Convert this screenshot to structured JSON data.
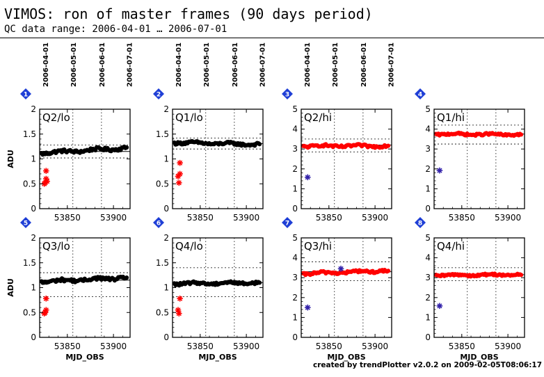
{
  "page": {
    "title": "VIMOS: ron of master frames (90 days period)",
    "subtitle": "QC data range: 2006-04-01 … 2006-07-01",
    "footer": "created by trendPlotter v2.0.2 on 2009-02-05T08:06:17"
  },
  "colors": {
    "black_points": "#000000",
    "red_points": "#ff0000",
    "outlier_star": "#3322aa",
    "badge": "#1f3fd6"
  },
  "chart_data": [
    {
      "type": "scatter",
      "panel": 1,
      "label": "Q2/lo",
      "ylabel": "ADU",
      "xlabel": "",
      "xlim": [
        53820,
        53918
      ],
      "ylim": [
        0,
        2
      ],
      "yticks": [
        0,
        0.5,
        1,
        1.5,
        2
      ],
      "yticklabels": [
        "0",
        "0.5",
        "1",
        "1.5",
        "2"
      ],
      "xticks": [
        53850,
        53900
      ],
      "xticklabels": [
        "53850",
        "53900"
      ],
      "date_ticks": [
        {
          "x": 53826,
          "label": "2006-04-01"
        },
        {
          "x": 53856,
          "label": "2006-05-01"
        },
        {
          "x": 53887,
          "label": "2006-06-01"
        },
        {
          "x": 53917,
          "label": "2006-07-01"
        }
      ],
      "ref_line": 1.15,
      "band": [
        1.02,
        1.28
      ],
      "main": {
        "color": "black",
        "start": 53822,
        "end": 53915,
        "base": 1.12,
        "end_level": 1.22,
        "scatter": 0.03
      },
      "stars": [
        {
          "x": 53826,
          "y": 0.52,
          "color": "red"
        },
        {
          "x": 53827,
          "y": 0.6,
          "color": "red"
        },
        {
          "x": 53825,
          "y": 0.5,
          "color": "red"
        },
        {
          "x": 53828,
          "y": 0.55,
          "color": "red"
        },
        {
          "x": 53827,
          "y": 0.76,
          "color": "red"
        }
      ]
    },
    {
      "type": "scatter",
      "panel": 2,
      "label": "Q1/lo",
      "ylabel": "",
      "xlabel": "",
      "xlim": [
        53820,
        53918
      ],
      "ylim": [
        0,
        2
      ],
      "yticks": [
        0,
        0.5,
        1,
        1.5,
        2
      ],
      "yticklabels": [
        "0",
        "0.5",
        "1",
        "1.5",
        "2"
      ],
      "xticks": [
        53850,
        53900
      ],
      "xticklabels": [
        "53850",
        "53900"
      ],
      "date_ticks": [
        {
          "x": 53826,
          "label": "2006-04-01"
        },
        {
          "x": 53856,
          "label": "2006-05-01"
        },
        {
          "x": 53887,
          "label": "2006-06-01"
        },
        {
          "x": 53917,
          "label": "2006-07-01"
        }
      ],
      "ref_line": 1.31,
      "band": [
        1.2,
        1.42
      ],
      "main": {
        "color": "black",
        "start": 53822,
        "end": 53915,
        "base": 1.33,
        "end_level": 1.29,
        "scatter": 0.025
      },
      "stars": [
        {
          "x": 53827,
          "y": 0.52,
          "color": "red"
        },
        {
          "x": 53826,
          "y": 0.65,
          "color": "red"
        },
        {
          "x": 53828,
          "y": 0.7,
          "color": "red"
        },
        {
          "x": 53828,
          "y": 0.92,
          "color": "red"
        }
      ]
    },
    {
      "type": "scatter",
      "panel": 3,
      "label": "Q2/hi",
      "ylabel": "",
      "xlabel": "",
      "xlim": [
        53820,
        53918
      ],
      "ylim": [
        0,
        5
      ],
      "yticks": [
        0,
        1,
        2,
        3,
        4,
        5
      ],
      "yticklabels": [
        "0",
        "1",
        "2",
        "3",
        "4",
        "5"
      ],
      "xticks": [
        53850,
        53900
      ],
      "xticklabels": [
        "53850",
        "53900"
      ],
      "date_ticks": [
        {
          "x": 53826,
          "label": "2006-04-01"
        },
        {
          "x": 53856,
          "label": "2006-05-01"
        },
        {
          "x": 53887,
          "label": "2006-06-01"
        },
        {
          "x": 53917,
          "label": "2006-07-01"
        }
      ],
      "ref_line": 3.2,
      "band": [
        2.85,
        3.5
      ],
      "main": {
        "color": "red",
        "start": 53822,
        "end": 53915,
        "base": 3.15,
        "end_level": 3.15,
        "scatter": 0.06
      },
      "stars": [
        {
          "x": 53827,
          "y": 1.58,
          "color": "blue"
        }
      ]
    },
    {
      "type": "scatter",
      "panel": 4,
      "label": "Q1/hi",
      "ylabel": "",
      "xlabel": "",
      "xlim": [
        53820,
        53918
      ],
      "ylim": [
        0,
        5
      ],
      "yticks": [
        0,
        1,
        2,
        3,
        4,
        5
      ],
      "yticklabels": [
        "0",
        "1",
        "2",
        "3",
        "4",
        "5"
      ],
      "xticks": [
        53850,
        53900
      ],
      "xticklabels": [
        "53850",
        "53900"
      ],
      "date_ticks": [],
      "ref_line": 3.75,
      "band": [
        3.25,
        4.2
      ],
      "main": {
        "color": "red",
        "start": 53822,
        "end": 53915,
        "base": 3.75,
        "end_level": 3.72,
        "scatter": 0.05
      },
      "stars": [
        {
          "x": 53826,
          "y": 1.92,
          "color": "blue"
        }
      ]
    },
    {
      "type": "scatter",
      "panel": 5,
      "label": "Q3/lo",
      "ylabel": "ADU",
      "xlabel": "MJD_OBS",
      "xlim": [
        53820,
        53918
      ],
      "ylim": [
        0,
        2
      ],
      "yticks": [
        0,
        0.5,
        1,
        1.5,
        2
      ],
      "yticklabels": [
        "0",
        "0.5",
        "1",
        "1.5",
        "2"
      ],
      "xticks": [
        53850,
        53900
      ],
      "xticklabels": [
        "53850",
        "53900"
      ],
      "date_ticks": [],
      "ref_line": 1.15,
      "band": [
        0.82,
        1.3
      ],
      "main": {
        "color": "black",
        "start": 53822,
        "end": 53915,
        "base": 1.12,
        "end_level": 1.2,
        "scatter": 0.03
      },
      "stars": [
        {
          "x": 53826,
          "y": 0.5,
          "color": "red"
        },
        {
          "x": 53827,
          "y": 0.55,
          "color": "red"
        },
        {
          "x": 53825,
          "y": 0.48,
          "color": "red"
        },
        {
          "x": 53827,
          "y": 0.78,
          "color": "red"
        }
      ]
    },
    {
      "type": "scatter",
      "panel": 6,
      "label": "Q4/lo",
      "ylabel": "",
      "xlabel": "MJD_OBS",
      "xlim": [
        53820,
        53918
      ],
      "ylim": [
        0,
        2
      ],
      "yticks": [
        0,
        0.5,
        1,
        1.5,
        2
      ],
      "yticklabels": [
        "0",
        "0.5",
        "1",
        "1.5",
        "2"
      ],
      "xticks": [
        53850,
        53900
      ],
      "xticklabels": [
        "53850",
        "53900"
      ],
      "date_ticks": [],
      "ref_line": 1.1,
      "band": [
        0.82,
        1.4
      ],
      "main": {
        "color": "black",
        "start": 53822,
        "end": 53915,
        "base": 1.08,
        "end_level": 1.1,
        "scatter": 0.025
      },
      "stars": [
        {
          "x": 53827,
          "y": 0.48,
          "color": "red"
        },
        {
          "x": 53826,
          "y": 0.55,
          "color": "red"
        },
        {
          "x": 53828,
          "y": 0.78,
          "color": "red"
        }
      ]
    },
    {
      "type": "scatter",
      "panel": 7,
      "label": "Q3/hi",
      "ylabel": "",
      "xlabel": "MJD_OBS",
      "xlim": [
        53820,
        53918
      ],
      "ylim": [
        0,
        5
      ],
      "yticks": [
        0,
        1,
        2,
        3,
        4,
        5
      ],
      "yticklabels": [
        "0",
        "1",
        "2",
        "3",
        "4",
        "5"
      ],
      "xticks": [
        53850,
        53900
      ],
      "xticklabels": [
        "53850",
        "53900"
      ],
      "date_ticks": [],
      "ref_line": 3.3,
      "band": [
        2.85,
        3.8
      ],
      "main": {
        "color": "red",
        "start": 53822,
        "end": 53915,
        "base": 3.2,
        "end_level": 3.35,
        "scatter": 0.06
      },
      "stars": [
        {
          "x": 53827,
          "y": 1.5,
          "color": "blue"
        },
        {
          "x": 53863,
          "y": 3.45,
          "color": "blue"
        }
      ]
    },
    {
      "type": "scatter",
      "panel": 8,
      "label": "Q4/hi",
      "ylabel": "",
      "xlabel": "MJD_OBS",
      "xlim": [
        53820,
        53918
      ],
      "ylim": [
        0,
        5
      ],
      "yticks": [
        0,
        1,
        2,
        3,
        4,
        5
      ],
      "yticklabels": [
        "0",
        "1",
        "2",
        "3",
        "4",
        "5"
      ],
      "xticks": [
        53850,
        53900
      ],
      "xticklabels": [
        "53850",
        "53900"
      ],
      "date_ticks": [],
      "ref_line": 3.15,
      "band": [
        2.85,
        3.5
      ],
      "main": {
        "color": "red",
        "start": 53822,
        "end": 53915,
        "base": 3.12,
        "end_level": 3.15,
        "scatter": 0.05
      },
      "stars": [
        {
          "x": 53826,
          "y": 1.58,
          "color": "blue"
        }
      ]
    }
  ]
}
